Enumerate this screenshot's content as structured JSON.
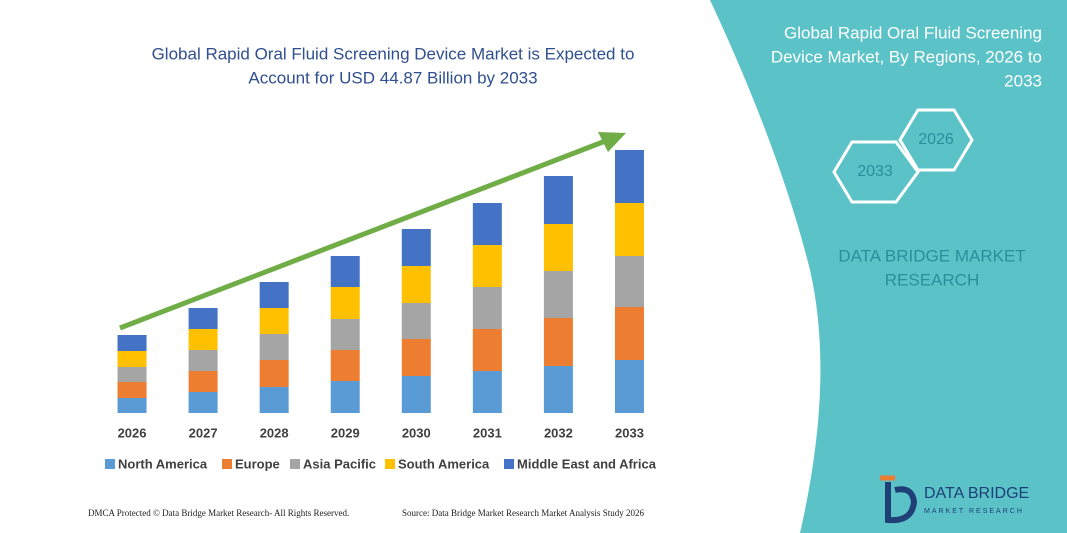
{
  "chart_data": {
    "type": "stacked-bar",
    "title": [
      "Global Rapid Oral Fluid Screening Device Market is Expected to",
      "Account for USD 44.87 Billion by 2033"
    ],
    "categories": [
      "2026",
      "2027",
      "2028",
      "2029",
      "2030",
      "2031",
      "2032",
      "2033"
    ],
    "series": [
      {
        "name": "North America",
        "color": "#5b9bd5",
        "values": [
          15,
          21,
          26,
          32,
          37,
          42,
          47,
          53
        ]
      },
      {
        "name": "Europe",
        "color": "#ed7d31",
        "values": [
          16,
          21,
          27,
          31,
          37,
          42,
          48,
          53
        ]
      },
      {
        "name": "Asia Pacific",
        "color": "#a5a5a5",
        "values": [
          15,
          21,
          26,
          31,
          36,
          42,
          47,
          51
        ]
      },
      {
        "name": "South America",
        "color": "#ffc000",
        "values": [
          16,
          21,
          26,
          32,
          37,
          42,
          47,
          53
        ]
      },
      {
        "name": "Middle East and Africa",
        "color": "#4472c4",
        "values": [
          16,
          21,
          26,
          31,
          37,
          42,
          48,
          53
        ]
      }
    ],
    "ylim": [
      0,
      270
    ]
  },
  "panel": {
    "title": [
      "Global Rapid Oral Fluid Screening",
      "Device Market, By Regions, 2026 to",
      "2033"
    ],
    "hexagons": [
      "2026",
      "2033"
    ],
    "brand": [
      "DATA BRIDGE MARKET",
      "RESEARCH"
    ],
    "logo": [
      "DATA BRIDGE",
      "MARKET RESEARCH"
    ]
  },
  "footer": {
    "left": "DMCA Protected © Data Bridge Market Research- All Rights Reserved.",
    "right": "Source: Data Bridge Market Research Market Analysis Study 2026"
  }
}
